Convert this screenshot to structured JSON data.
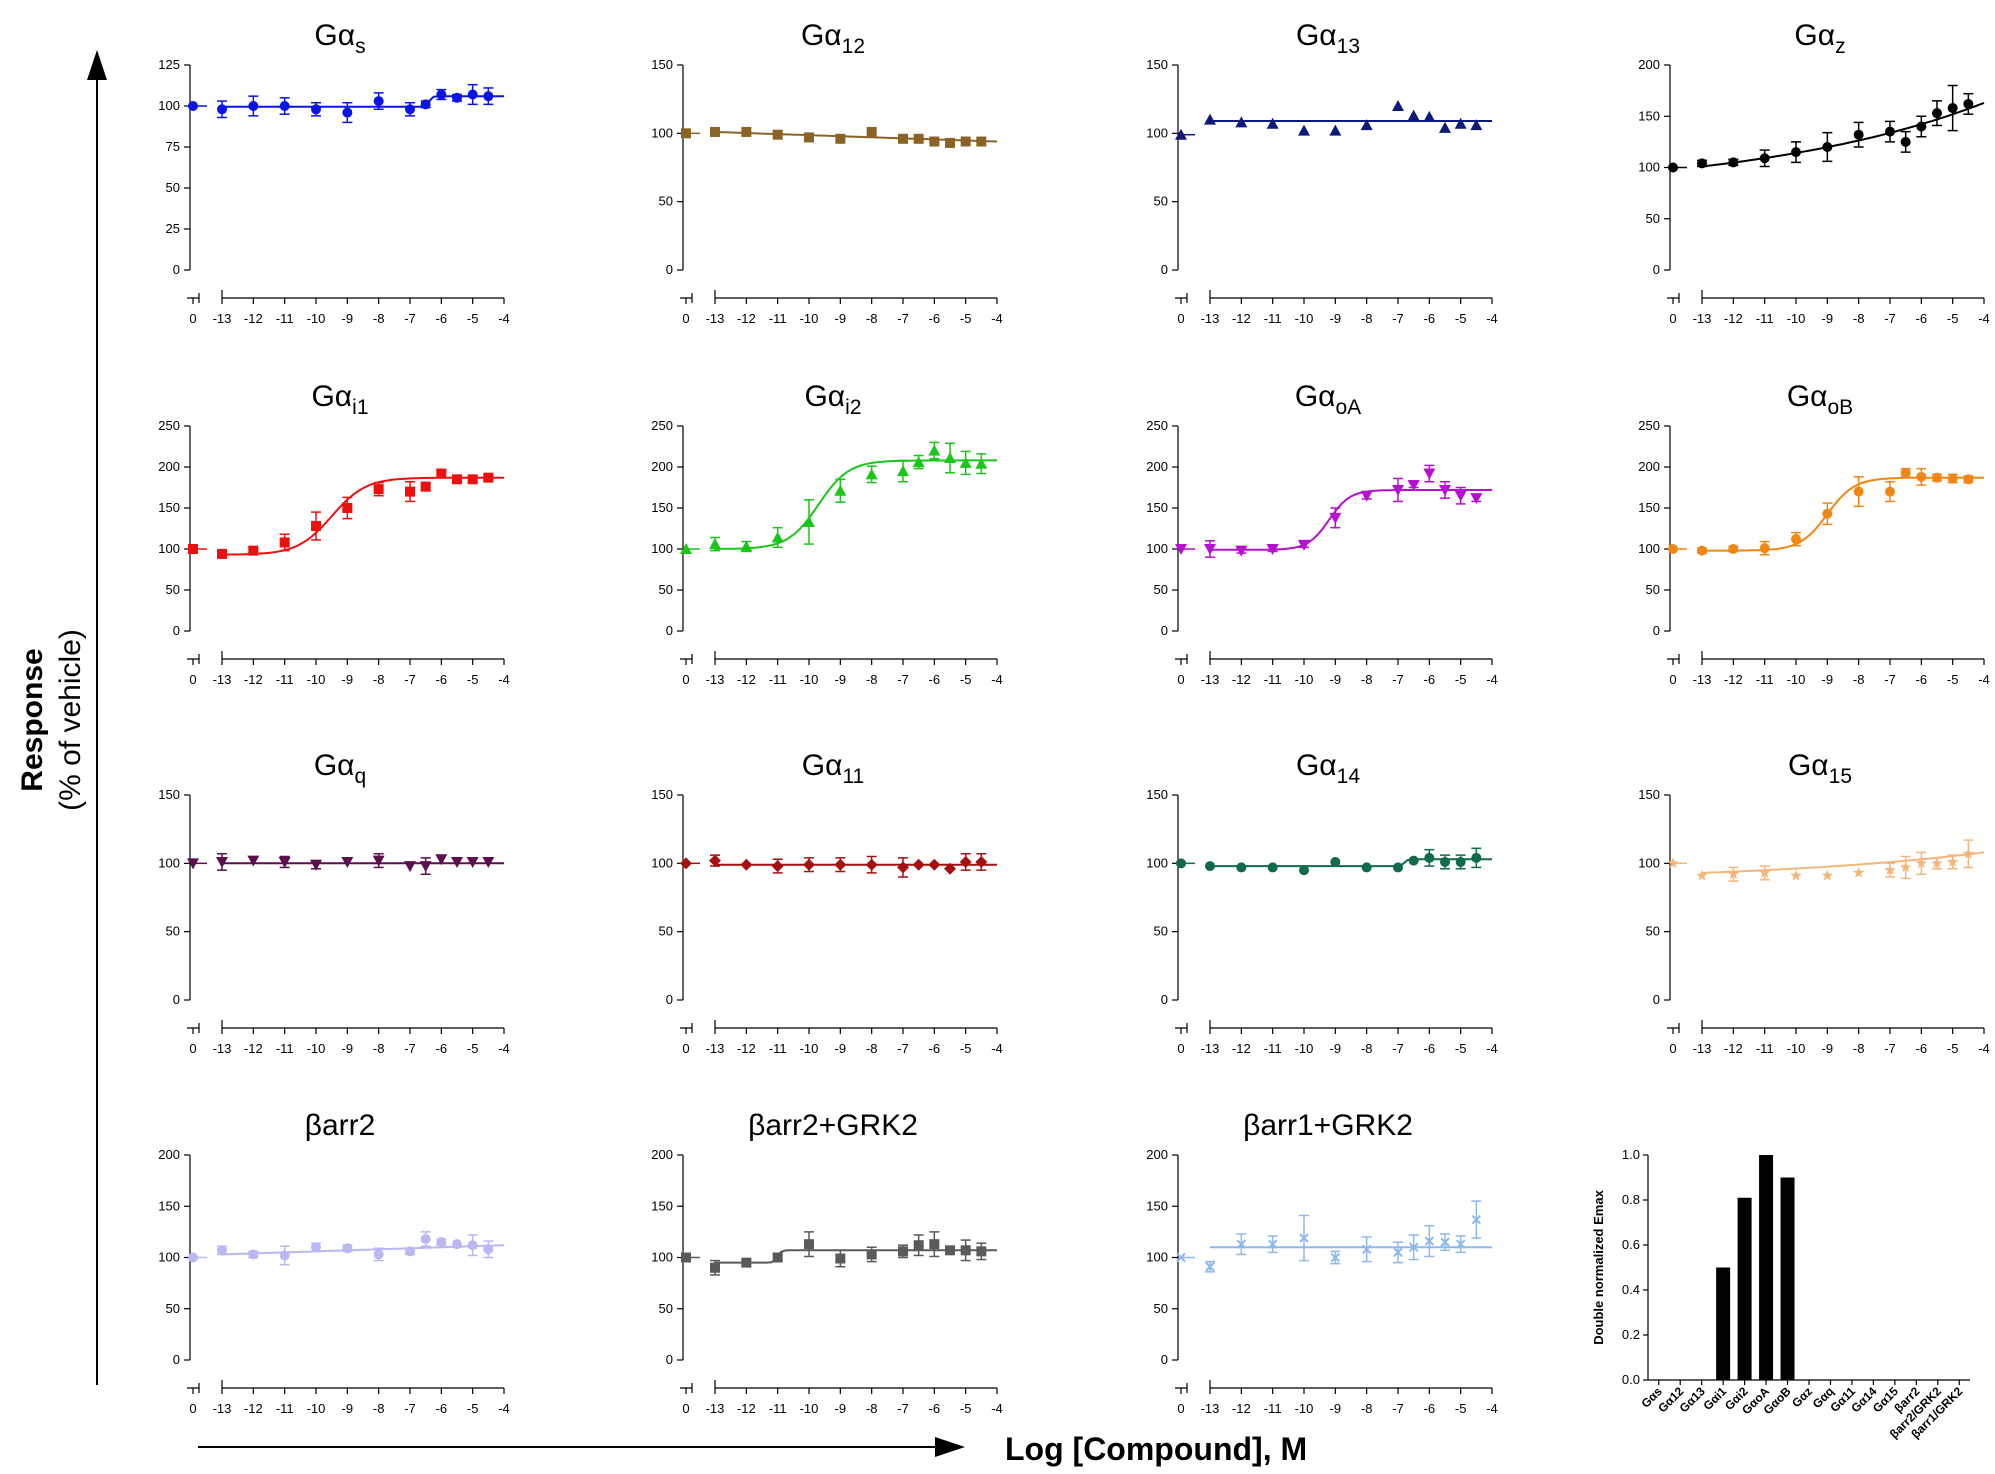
{
  "ylabel": {
    "line1": "Response",
    "line2": "(% of vehicle)"
  },
  "xlabel": "Log [Compound], M",
  "chart_data": [
    {
      "type": "scatter",
      "title": "Gαs",
      "title_main": "Gα",
      "title_sub": "s",
      "color": "#0a14e6",
      "marker": "circle",
      "ylim": [
        0,
        125
      ],
      "yticks": [
        0,
        25,
        50,
        75,
        100,
        125
      ],
      "xticks": [
        "0",
        "-13",
        "-12",
        "-11",
        "-10",
        "-9",
        "-8",
        "-7",
        "-6",
        "-5",
        "-4"
      ],
      "vehicle": 100,
      "x": [
        -13,
        -12,
        -11,
        -10,
        -9,
        -8,
        -7,
        -6.5,
        -6,
        -5.5,
        -5,
        -4.5
      ],
      "y": [
        98,
        100,
        100,
        98,
        96,
        103,
        98,
        101,
        107,
        105,
        107,
        106
      ],
      "err": [
        5,
        6,
        5,
        4,
        6,
        5,
        4,
        2,
        3,
        2,
        6,
        5
      ],
      "curve": "step",
      "curve_base": 99.5,
      "curve_top": 106,
      "curve_mid": -6.4
    },
    {
      "type": "scatter",
      "title": "Gα12",
      "title_main": "Gα",
      "title_sub": "12",
      "color": "#8b6326",
      "marker": "square",
      "ylim": [
        0,
        150
      ],
      "yticks": [
        0,
        50,
        100,
        150
      ],
      "xticks": [
        "0",
        "-13",
        "-12",
        "-11",
        "-10",
        "-9",
        "-8",
        "-7",
        "-6",
        "-5",
        "-4"
      ],
      "vehicle": 100,
      "x": [
        -13,
        -12,
        -11,
        -10,
        -9,
        -8,
        -7,
        -6.5,
        -6,
        -5.5,
        -5,
        -4.5
      ],
      "y": [
        101,
        101,
        99,
        97,
        96,
        101,
        96,
        96,
        94,
        93,
        94,
        94
      ],
      "err": [
        0,
        0,
        0,
        0,
        0,
        0,
        0,
        0,
        0,
        0,
        0,
        0
      ],
      "curve": "linear",
      "curve_start": 101,
      "curve_end": 94
    },
    {
      "type": "scatter",
      "title": "Gα13",
      "title_main": "Gα",
      "title_sub": "13",
      "color": "#0c1a7a",
      "marker": "triangle",
      "ylim": [
        0,
        150
      ],
      "yticks": [
        0,
        50,
        100,
        150
      ],
      "xticks": [
        "0",
        "-13",
        "-12",
        "-11",
        "-10",
        "-9",
        "-8",
        "-7",
        "-6",
        "-5",
        "-4"
      ],
      "vehicle": 99,
      "x": [
        -13,
        -12,
        -11,
        -10,
        -9,
        -8,
        -7,
        -6.5,
        -6,
        -5.5,
        -5,
        -4.5
      ],
      "y": [
        110,
        108,
        107,
        102,
        102,
        106,
        120,
        113,
        112,
        104,
        107,
        106
      ],
      "err": [
        0,
        0,
        0,
        0,
        0,
        0,
        0,
        0,
        0,
        0,
        0,
        0
      ],
      "curve": "flat",
      "curve_level": 109
    },
    {
      "type": "scatter",
      "title": "Gαz",
      "title_main": "Gα",
      "title_sub": "z",
      "color": "#000000",
      "marker": "circle",
      "ylim": [
        0,
        200
      ],
      "yticks": [
        0,
        50,
        100,
        150,
        200
      ],
      "xticks": [
        "0",
        "-13",
        "-12",
        "-11",
        "-10",
        "-9",
        "-8",
        "-7",
        "-6",
        "-5",
        "-4"
      ],
      "vehicle": 100,
      "x": [
        -13,
        -12,
        -11,
        -10,
        -9,
        -8,
        -7,
        -6.5,
        -6,
        -5.5,
        -5,
        -4.5
      ],
      "y": [
        104,
        105,
        109,
        115,
        120,
        132,
        135,
        125,
        140,
        153,
        158,
        162
      ],
      "err": [
        3,
        3,
        8,
        10,
        14,
        12,
        10,
        10,
        10,
        12,
        22,
        10
      ],
      "curve": "exp",
      "curve_start": 101,
      "curve_end": 163
    },
    {
      "type": "scatter",
      "title": "Gαi1",
      "title_main": "Gα",
      "title_sub": "i1",
      "color": "#ee0f0f",
      "marker": "square",
      "ylim": [
        0,
        250
      ],
      "yticks": [
        0,
        50,
        100,
        150,
        200,
        250
      ],
      "xticks": [
        "0",
        "-13",
        "-12",
        "-11",
        "-10",
        "-9",
        "-8",
        "-7",
        "-6",
        "-5",
        "-4"
      ],
      "vehicle": 100,
      "x": [
        -13,
        -12,
        -11,
        -10,
        -9,
        -8,
        -7,
        -6.5,
        -6,
        -5.5,
        -5,
        -4.5
      ],
      "y": [
        94,
        98,
        108,
        128,
        150,
        173,
        170,
        176,
        192,
        185,
        185,
        187
      ],
      "err": [
        3,
        3,
        10,
        17,
        13,
        8,
        12,
        5,
        5,
        3,
        3,
        3
      ],
      "curve": "sigmoid",
      "bottom": 93,
      "top": 187,
      "ec50": -9.5,
      "hill": 0.8
    },
    {
      "type": "scatter",
      "title": "Gαi2",
      "title_main": "Gα",
      "title_sub": "i2",
      "color": "#19c619",
      "marker": "triangle",
      "ylim": [
        0,
        250
      ],
      "yticks": [
        0,
        50,
        100,
        150,
        200,
        250
      ],
      "xticks": [
        "0",
        "-13",
        "-12",
        "-11",
        "-10",
        "-9",
        "-8",
        "-7",
        "-6",
        "-5",
        "-4"
      ],
      "vehicle": 100,
      "x": [
        -13,
        -12,
        -11,
        -10,
        -9,
        -8,
        -7,
        -6.5,
        -6,
        -5.5,
        -5,
        -4.5
      ],
      "y": [
        106,
        103,
        114,
        133,
        171,
        191,
        195,
        206,
        220,
        211,
        205,
        204
      ],
      "err": [
        8,
        6,
        12,
        27,
        14,
        10,
        13,
        8,
        10,
        18,
        14,
        12
      ],
      "curve": "sigmoid",
      "bottom": 100,
      "top": 208,
      "ec50": -9.7,
      "hill": 0.9
    },
    {
      "type": "scatter",
      "title": "GαoA",
      "title_main": "Gα",
      "title_sub": "oA",
      "color": "#b50fcf",
      "marker": "triangle-down",
      "ylim": [
        0,
        250
      ],
      "yticks": [
        0,
        50,
        100,
        150,
        200,
        250
      ],
      "xticks": [
        "0",
        "-13",
        "-12",
        "-11",
        "-10",
        "-9",
        "-8",
        "-7",
        "-6",
        "-5",
        "-4"
      ],
      "vehicle": 100,
      "x": [
        -13,
        -12,
        -11,
        -10,
        -9,
        -8,
        -7,
        -6.5,
        -6,
        -5.5,
        -5,
        -4.5
      ],
      "y": [
        100,
        98,
        100,
        105,
        138,
        165,
        172,
        178,
        192,
        172,
        165,
        162
      ],
      "err": [
        10,
        3,
        3,
        3,
        12,
        4,
        14,
        3,
        10,
        10,
        10,
        4
      ],
      "curve": "sigmoid",
      "bottom": 99,
      "top": 172,
      "ec50": -9.2,
      "hill": 1.3
    },
    {
      "type": "scatter",
      "title": "GαoB",
      "title_main": "Gα",
      "title_sub": "oB",
      "color": "#f08614",
      "marker": "circle",
      "ylim": [
        0,
        250
      ],
      "yticks": [
        0,
        50,
        100,
        150,
        200,
        250
      ],
      "xticks": [
        "0",
        "-13",
        "-12",
        "-11",
        "-10",
        "-9",
        "-8",
        "-7",
        "-6",
        "-5",
        "-4"
      ],
      "vehicle": 100,
      "x": [
        -13,
        -12,
        -11,
        -10,
        -9,
        -8,
        -7,
        -6.5,
        -6,
        -5.5,
        -5,
        -4.5
      ],
      "y": [
        98,
        100,
        101,
        112,
        143,
        170,
        170,
        193,
        188,
        187,
        186,
        185
      ],
      "err": [
        3,
        3,
        8,
        8,
        13,
        18,
        12,
        5,
        10,
        4,
        5,
        4
      ],
      "curve": "sigmoid",
      "bottom": 98,
      "top": 187,
      "ec50": -9.0,
      "hill": 1.0
    },
    {
      "type": "scatter",
      "title": "Gαq",
      "title_main": "Gα",
      "title_sub": "q",
      "color": "#5c0f4f",
      "marker": "triangle-down",
      "ylim": [
        0,
        150
      ],
      "yticks": [
        0,
        50,
        100,
        150
      ],
      "xticks": [
        "0",
        "-13",
        "-12",
        "-11",
        "-10",
        "-9",
        "-8",
        "-7",
        "-6",
        "-5",
        "-4"
      ],
      "vehicle": 100,
      "x": [
        -13,
        -12,
        -11,
        -10,
        -9,
        -8,
        -7,
        -6.5,
        -6,
        -5.5,
        -5,
        -4.5
      ],
      "y": [
        101,
        102,
        101,
        99,
        101,
        102,
        98,
        98,
        103,
        101,
        101,
        101
      ],
      "err": [
        6,
        0,
        4,
        3,
        0,
        5,
        0,
        6,
        0,
        0,
        0,
        0
      ],
      "curve": "flat",
      "curve_level": 100
    },
    {
      "type": "scatter",
      "title": "Gα11",
      "title_main": "Gα",
      "title_sub": "11",
      "color": "#a51010",
      "marker": "diamond",
      "ylim": [
        0,
        150
      ],
      "yticks": [
        0,
        50,
        100,
        150
      ],
      "xticks": [
        "0",
        "-13",
        "-12",
        "-11",
        "-10",
        "-9",
        "-8",
        "-7",
        "-6",
        "-5",
        "-4"
      ],
      "vehicle": 100,
      "x": [
        -13,
        -12,
        -11,
        -10,
        -9,
        -8,
        -7,
        -6.5,
        -6,
        -5.5,
        -5,
        -4.5
      ],
      "y": [
        102,
        99,
        98,
        99,
        99,
        99,
        97,
        99,
        99,
        96,
        101,
        101
      ],
      "err": [
        4,
        0,
        5,
        5,
        5,
        6,
        7,
        0,
        0,
        0,
        6,
        6
      ],
      "curve": "flat",
      "curve_level": 99
    },
    {
      "type": "scatter",
      "title": "Gα14",
      "title_main": "Gα",
      "title_sub": "14",
      "color": "#0f6b4b",
      "marker": "circle",
      "ylim": [
        0,
        150
      ],
      "yticks": [
        0,
        50,
        100,
        150
      ],
      "xticks": [
        "0",
        "-13",
        "-12",
        "-11",
        "-10",
        "-9",
        "-8",
        "-7",
        "-6",
        "-5",
        "-4"
      ],
      "vehicle": 100,
      "x": [
        -13,
        -12,
        -11,
        -10,
        -9,
        -8,
        -7,
        -6.5,
        -6,
        -5.5,
        -5,
        -4.5
      ],
      "y": [
        98,
        97,
        97,
        95,
        101,
        97,
        97,
        102,
        104,
        101,
        101,
        104
      ],
      "err": [
        0,
        0,
        0,
        0,
        0,
        0,
        0,
        0,
        6,
        5,
        5,
        7
      ],
      "curve": "step",
      "curve_base": 98,
      "curve_top": 103,
      "curve_mid": -6.8
    },
    {
      "type": "scatter",
      "title": "Gα15",
      "title_main": "Gα",
      "title_sub": "15",
      "color": "#f5b67c",
      "marker": "star",
      "ylim": [
        0,
        150
      ],
      "yticks": [
        0,
        50,
        100,
        150
      ],
      "xticks": [
        "0",
        "-13",
        "-12",
        "-11",
        "-10",
        "-9",
        "-8",
        "-7",
        "-6",
        "-5",
        "-4"
      ],
      "vehicle": 100,
      "x": [
        -13,
        -12,
        -11,
        -10,
        -9,
        -8,
        -7,
        -6.5,
        -6,
        -5.5,
        -5,
        -4.5
      ],
      "y": [
        91,
        92,
        93,
        91,
        91,
        93,
        95,
        97,
        100,
        100,
        101,
        107
      ],
      "err": [
        0,
        5,
        5,
        0,
        0,
        0,
        5,
        8,
        8,
        4,
        5,
        10
      ],
      "curve": "exp",
      "curve_start": 93,
      "curve_end": 108
    },
    {
      "type": "scatter",
      "title": "βarr2",
      "title_main": "βarr2",
      "title_sub": "",
      "color": "#b8b8f2",
      "marker": "circle",
      "ylim": [
        0,
        200
      ],
      "yticks": [
        0,
        50,
        100,
        150,
        200
      ],
      "xticks": [
        "0",
        "-13",
        "-12",
        "-11",
        "-10",
        "-9",
        "-8",
        "-7",
        "-6",
        "-5",
        "-4"
      ],
      "vehicle": 100,
      "x": [
        -13,
        -12,
        -11,
        -10,
        -9,
        -8,
        -7,
        -6.5,
        -6,
        -5.5,
        -5,
        -4.5
      ],
      "y": [
        107,
        103,
        102,
        110,
        109,
        103,
        106,
        118,
        115,
        113,
        112,
        108
      ],
      "err": [
        4,
        3,
        9,
        4,
        3,
        6,
        3,
        7,
        3,
        0,
        10,
        8
      ],
      "curve": "linear",
      "curve_start": 103,
      "curve_end": 112
    },
    {
      "type": "scatter",
      "title": "βarr2+GRK2",
      "title_main": "βarr2+GRK2",
      "title_sub": "",
      "color": "#5a5a5a",
      "marker": "square",
      "ylim": [
        0,
        200
      ],
      "yticks": [
        0,
        50,
        100,
        150,
        200
      ],
      "xticks": [
        "0",
        "-13",
        "-12",
        "-11",
        "-10",
        "-9",
        "-8",
        "-7",
        "-6",
        "-5",
        "-4"
      ],
      "vehicle": 100,
      "x": [
        -13,
        -12,
        -11,
        -10,
        -9,
        -8,
        -7,
        -6.5,
        -6,
        -5.5,
        -5,
        -4.5
      ],
      "y": [
        90,
        95,
        100,
        113,
        99,
        103,
        106,
        112,
        113,
        107,
        107,
        106
      ],
      "err": [
        7,
        3,
        3,
        12,
        8,
        7,
        6,
        10,
        12,
        3,
        10,
        8
      ],
      "curve": "step",
      "curve_base": 95,
      "curve_top": 107,
      "curve_mid": -11
    },
    {
      "type": "scatter",
      "title": "βarr1+GRK2",
      "title_main": "βarr1+GRK2",
      "title_sub": "",
      "color": "#8db8ee",
      "marker": "x",
      "ylim": [
        0,
        200
      ],
      "yticks": [
        0,
        50,
        100,
        150,
        200
      ],
      "xticks": [
        "0",
        "-13",
        "-12",
        "-11",
        "-10",
        "-9",
        "-8",
        "-7",
        "-6",
        "-5",
        "-4"
      ],
      "vehicle": 100,
      "x": [
        -13,
        -12,
        -11,
        -10,
        -9,
        -8,
        -7,
        -6.5,
        -6,
        -5.5,
        -5,
        -4.5
      ],
      "y": [
        91,
        113,
        113,
        119,
        100,
        108,
        105,
        110,
        116,
        115,
        113,
        137
      ],
      "err": [
        5,
        10,
        8,
        22,
        6,
        12,
        10,
        12,
        15,
        8,
        8,
        18
      ],
      "curve": "flat",
      "curve_level": 110
    },
    {
      "type": "bar",
      "ylabel": "Double normalized Emax",
      "ylim": [
        0,
        1.0
      ],
      "yticks": [
        "0.0",
        "0.2",
        "0.4",
        "0.6",
        "0.8",
        "1.0"
      ],
      "categories": [
        "Gαs",
        "Gα12",
        "Gα13",
        "Gαi1",
        "Gαi2",
        "GαoA",
        "GαoB",
        "Gαz",
        "Gαq",
        "Gα11",
        "Gα14",
        "Gα15",
        "βarr2",
        "βarr2/GRK2",
        "βarr1/GRK2"
      ],
      "values": [
        0,
        0,
        0,
        0.5,
        0.81,
        1.0,
        0.9,
        0,
        0,
        0,
        0,
        0,
        0,
        0,
        0
      ]
    }
  ]
}
